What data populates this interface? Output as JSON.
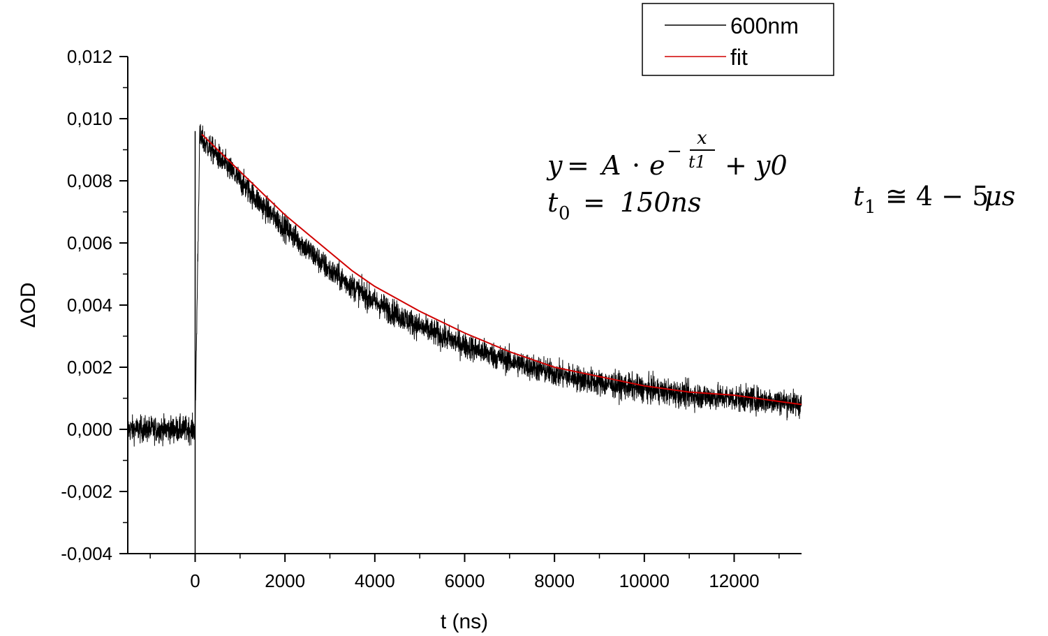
{
  "chart_data": {
    "type": "line",
    "title": "",
    "xlabel": "t (ns)",
    "ylabel": "ΔOD",
    "xlim": [
      -1500,
      13500
    ],
    "ylim": [
      -0.004,
      0.012
    ],
    "x_ticks": [
      0,
      2000,
      4000,
      6000,
      8000,
      10000,
      12000
    ],
    "x_tick_labels": [
      "0",
      "2000",
      "4000",
      "6000",
      "8000",
      "10000",
      "12000"
    ],
    "y_ticks": [
      -0.004,
      -0.002,
      0.0,
      0.002,
      0.004,
      0.006,
      0.008,
      0.01,
      0.012
    ],
    "y_tick_labels": [
      "-0,004",
      "-0,002",
      "0,000",
      "0,002",
      "0,004",
      "0,006",
      "0,008",
      "0,010",
      "0,012"
    ],
    "grid": false,
    "legend": {
      "placement": "top-right, outside plot",
      "entries": [
        {
          "label": "600nm",
          "color": "#000000"
        },
        {
          "label": "fit",
          "color": "#d00000"
        }
      ]
    },
    "series": [
      {
        "name": "600nm",
        "color": "#000000",
        "style": "noisy signal",
        "x": [
          -1500,
          -1000,
          -500,
          -100,
          0,
          100,
          500,
          1000,
          1500,
          2000,
          2500,
          3000,
          3500,
          4000,
          5000,
          6000,
          7000,
          8000,
          9000,
          10000,
          11000,
          12000,
          13000,
          13500
        ],
        "y": [
          0.0,
          0.0,
          0.0,
          0.0,
          0.0,
          0.0094,
          0.0088,
          0.008,
          0.0072,
          0.0065,
          0.0058,
          0.0051,
          0.0046,
          0.0041,
          0.0033,
          0.0027,
          0.0022,
          0.0018,
          0.0015,
          0.0013,
          0.0011,
          0.001,
          0.0009,
          0.0008
        ],
        "noise_amplitude": 0.0009
      },
      {
        "name": "fit",
        "color": "#d00000",
        "x": [
          150,
          500,
          1000,
          1500,
          2000,
          2500,
          3000,
          3500,
          4000,
          5000,
          6000,
          7000,
          8000,
          9000,
          10000,
          11000,
          12000,
          13000,
          13500
        ],
        "y": [
          0.0095,
          0.009,
          0.0083,
          0.0076,
          0.0069,
          0.0063,
          0.0057,
          0.0051,
          0.0046,
          0.0038,
          0.0031,
          0.0025,
          0.002,
          0.0017,
          0.0014,
          0.0012,
          0.0011,
          0.0009,
          0.0008
        ]
      }
    ],
    "annotations": {
      "equation": "y = A · e^(−x/t1) + y0",
      "t0": "t₀ = 150ns",
      "t1": "t₁ ≅ 4 − 5μs"
    }
  }
}
